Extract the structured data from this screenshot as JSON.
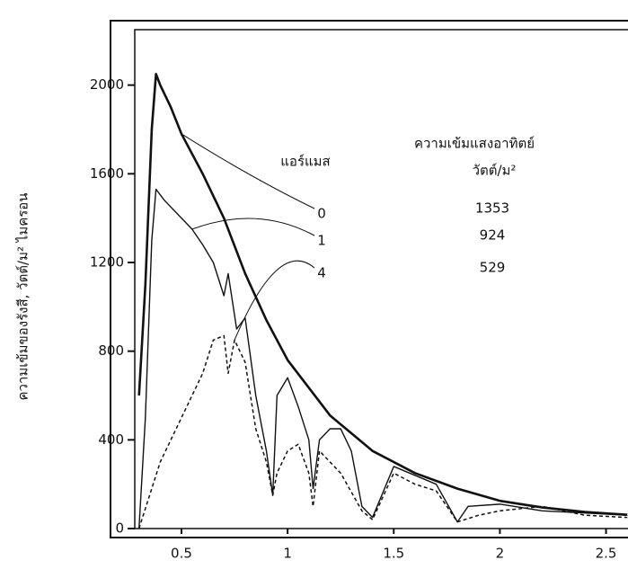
{
  "chart_data": {
    "type": "line",
    "y_label": "ความเข้มของรังสี, วัตต์/ม² ไมครอน",
    "legend_title": "แอร์แมส",
    "legend_value_title": "ความเข้มแสงอาทิตย์",
    "legend_value_unit": "วัตต์/ม²",
    "xlim": [
      0.28,
      2.65
    ],
    "ylim": [
      0,
      2250
    ],
    "xticks": [
      0.5,
      1.0,
      1.5,
      2.0,
      2.5
    ],
    "yticks": [
      0,
      400,
      800,
      1200,
      1600,
      2000
    ],
    "series": [
      {
        "name": "0",
        "irradiance": 1353,
        "color": "#111",
        "width": 2.6,
        "dash": false,
        "x": [
          0.3,
          0.33,
          0.36,
          0.38,
          0.4,
          0.45,
          0.5,
          0.6,
          0.7,
          0.8,
          0.9,
          1.0,
          1.2,
          1.4,
          1.6,
          1.8,
          2.0,
          2.2,
          2.4,
          2.6
        ],
        "values": [
          600,
          1100,
          1800,
          2050,
          2000,
          1900,
          1780,
          1600,
          1400,
          1150,
          940,
          760,
          510,
          350,
          250,
          180,
          125,
          95,
          75,
          62
        ]
      },
      {
        "name": "1",
        "irradiance": 924,
        "color": "#111",
        "width": 1.4,
        "dash": false,
        "x": [
          0.3,
          0.33,
          0.36,
          0.38,
          0.42,
          0.5,
          0.55,
          0.6,
          0.65,
          0.7,
          0.72,
          0.76,
          0.8,
          0.85,
          0.9,
          0.93,
          0.95,
          1.0,
          1.05,
          1.1,
          1.12,
          1.15,
          1.2,
          1.25,
          1.3,
          1.35,
          1.4,
          1.5,
          1.6,
          1.7,
          1.8,
          1.85,
          2.0,
          2.2,
          2.4,
          2.6
        ],
        "values": [
          0,
          500,
          1300,
          1530,
          1480,
          1400,
          1350,
          1280,
          1200,
          1050,
          1150,
          900,
          950,
          600,
          350,
          150,
          600,
          680,
          550,
          400,
          180,
          400,
          450,
          450,
          350,
          100,
          50,
          280,
          240,
          200,
          30,
          100,
          110,
          80,
          70,
          60
        ]
      },
      {
        "name": "4",
        "irradiance": 529,
        "color": "#111",
        "width": 1.5,
        "dash": true,
        "x": [
          0.3,
          0.4,
          0.5,
          0.6,
          0.65,
          0.7,
          0.72,
          0.75,
          0.8,
          0.85,
          0.9,
          0.93,
          0.95,
          1.0,
          1.05,
          1.1,
          1.12,
          1.15,
          1.2,
          1.25,
          1.35,
          1.4,
          1.5,
          1.6,
          1.7,
          1.8,
          1.9,
          2.0,
          2.2,
          2.4,
          2.6
        ],
        "values": [
          0,
          300,
          500,
          700,
          850,
          870,
          700,
          850,
          750,
          450,
          300,
          150,
          250,
          350,
          380,
          250,
          100,
          350,
          300,
          250,
          80,
          40,
          250,
          200,
          170,
          30,
          60,
          80,
          100,
          60,
          50
        ]
      }
    ]
  }
}
